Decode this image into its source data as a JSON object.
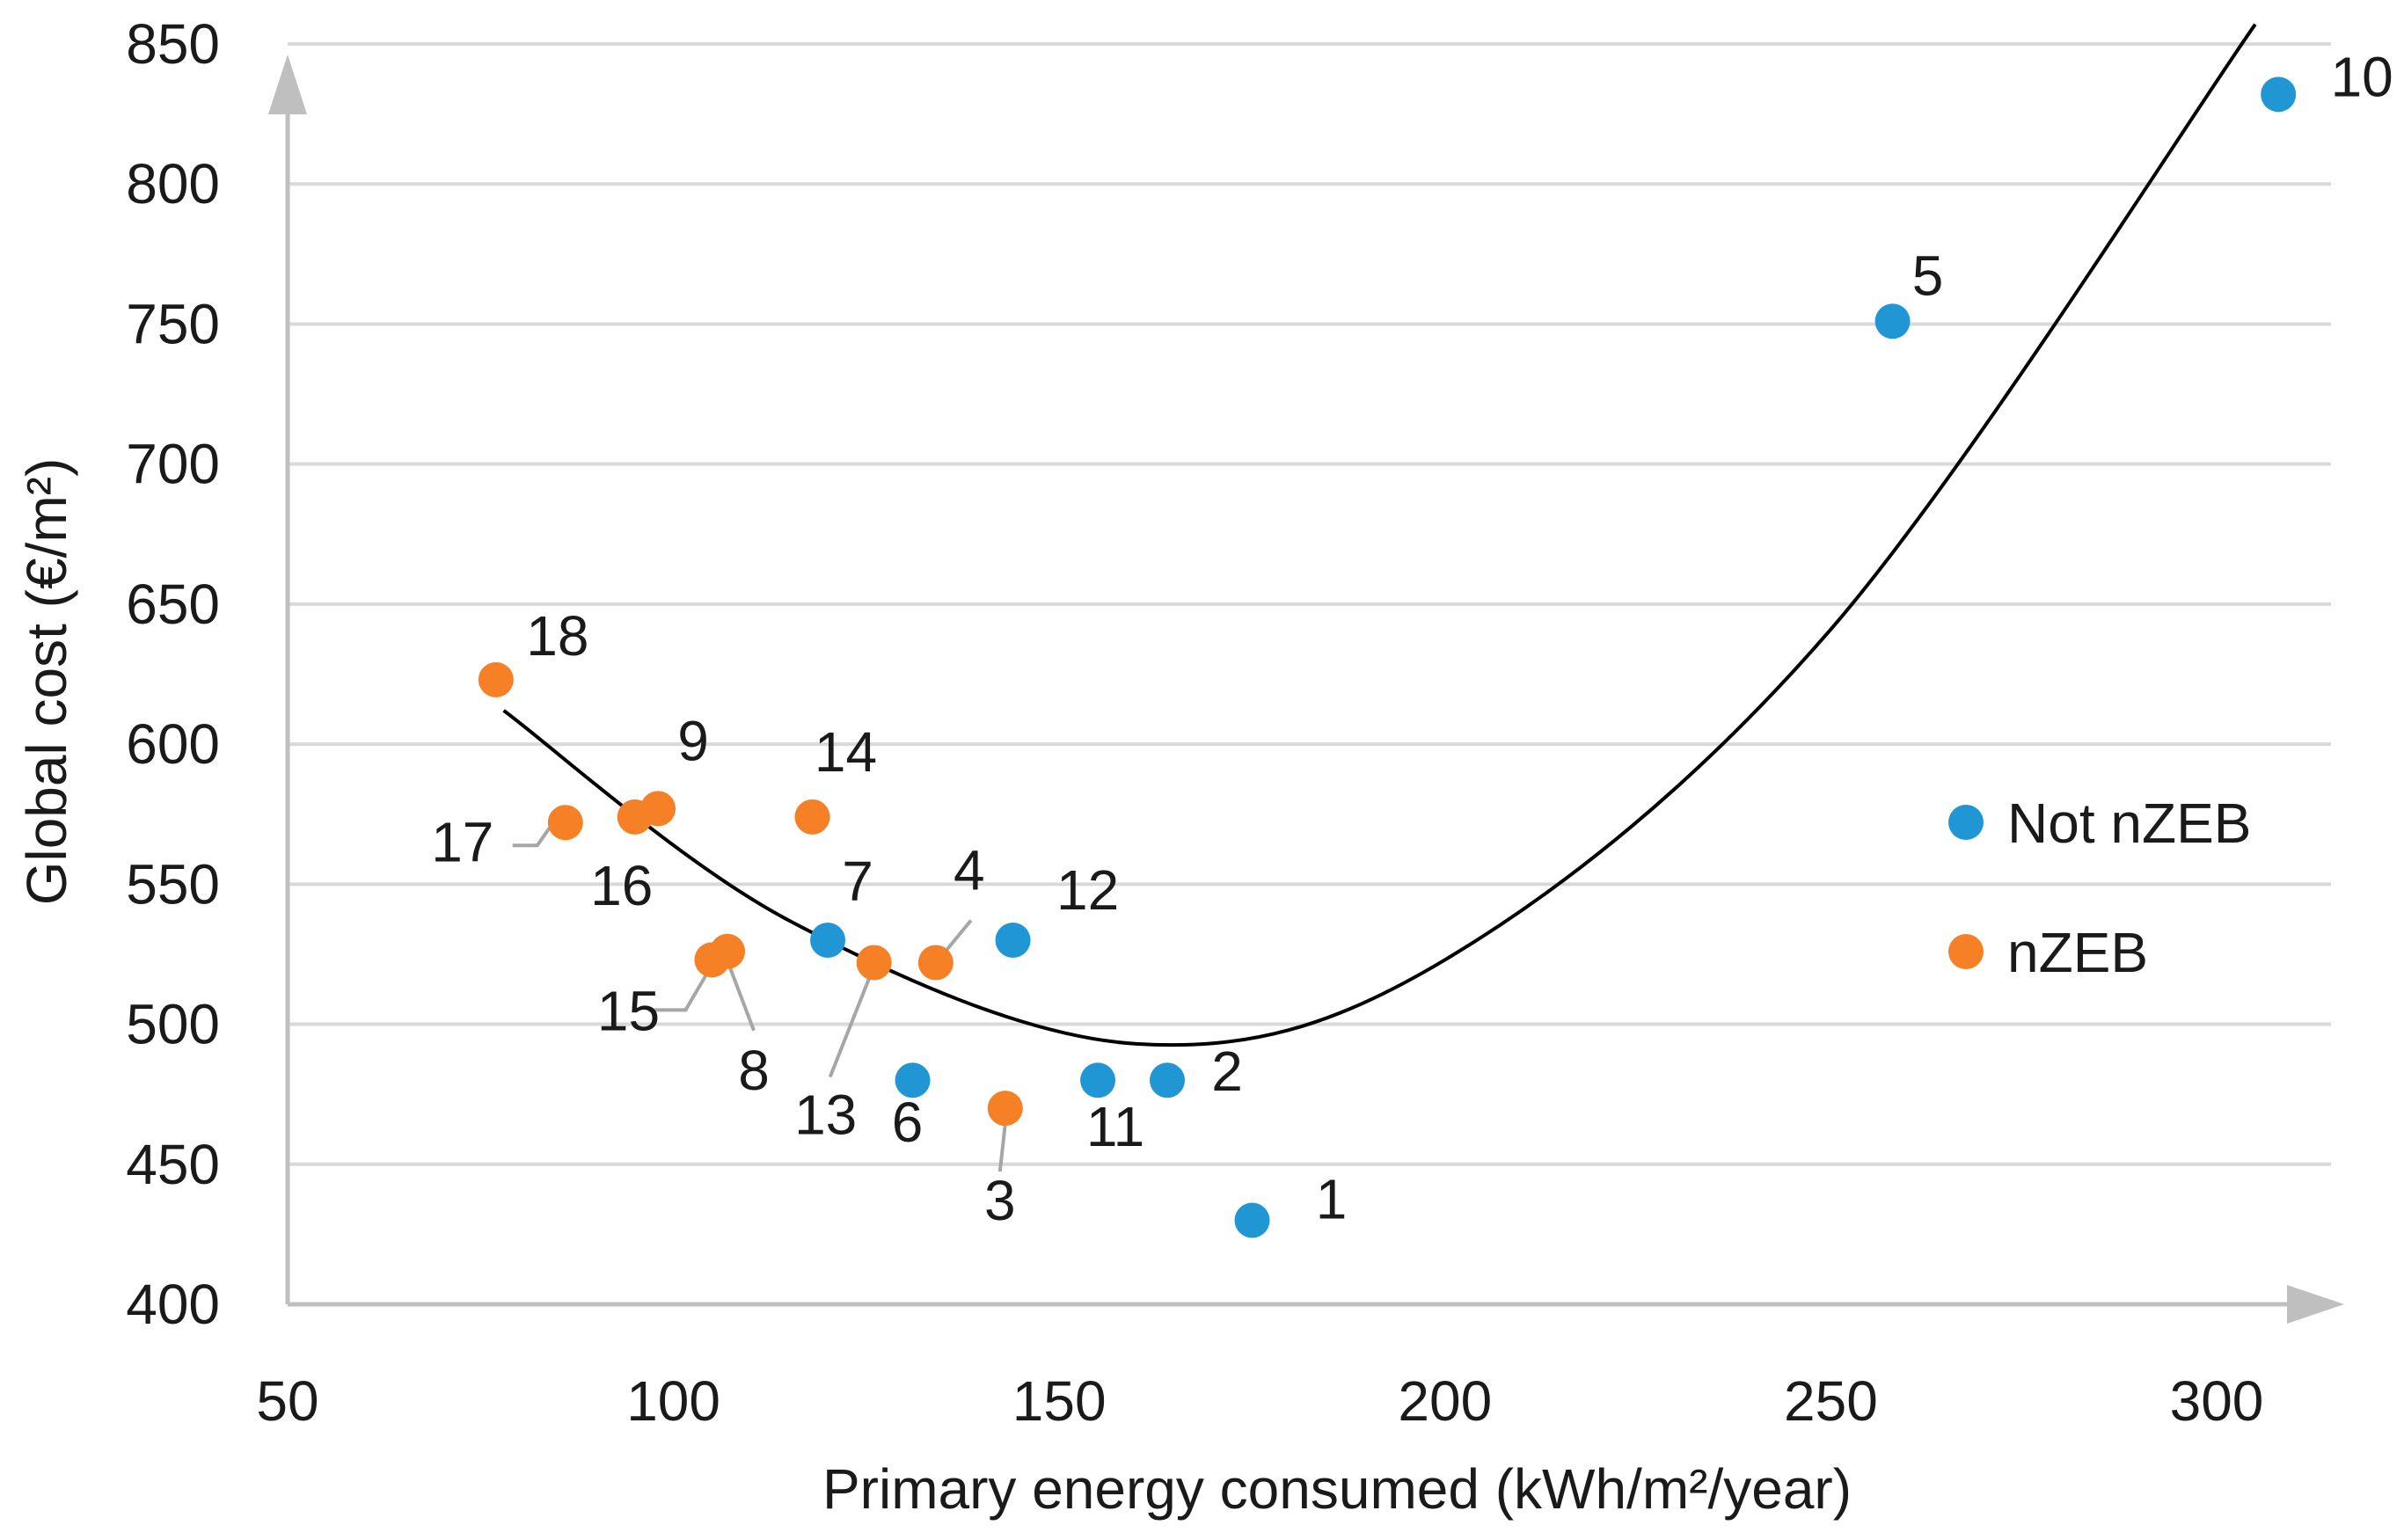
{
  "chart_data": {
    "type": "scatter",
    "title": "",
    "xlabel": "Primary energy consumed (kWh/m²/year)",
    "ylabel": "Global cost (€/m²)",
    "xlim": [
      50,
      320
    ],
    "ylim": [
      400,
      860
    ],
    "xticks": [
      50,
      100,
      150,
      200,
      250,
      300
    ],
    "yticks": [
      400,
      450,
      500,
      550,
      600,
      650,
      700,
      750,
      800,
      850
    ],
    "grid": "horizontal",
    "legend_position": "right",
    "series": [
      {
        "name": "Not nZEB",
        "color": "#2196d4",
        "points": [
          {
            "label": "1",
            "x": 175,
            "y": 430
          },
          {
            "label": "2",
            "x": 164,
            "y": 480
          },
          {
            "label": "5",
            "x": 258,
            "y": 751
          },
          {
            "label": "6",
            "x": 131,
            "y": 480
          },
          {
            "label": "7",
            "x": 120,
            "y": 530
          },
          {
            "label": "10",
            "x": 308,
            "y": 832
          },
          {
            "label": "11",
            "x": 155,
            "y": 480
          },
          {
            "label": "12",
            "x": 144,
            "y": 530
          }
        ]
      },
      {
        "name": "nZEB",
        "color": "#f58025",
        "points": [
          {
            "label": "3",
            "x": 143,
            "y": 470
          },
          {
            "label": "4",
            "x": 134,
            "y": 522
          },
          {
            "label": "8",
            "x": 107,
            "y": 526
          },
          {
            "label": "9",
            "x": 98,
            "y": 577
          },
          {
            "label": "13",
            "x": 126,
            "y": 522
          },
          {
            "label": "14",
            "x": 118,
            "y": 574
          },
          {
            "label": "15",
            "x": 105,
            "y": 523
          },
          {
            "label": "16",
            "x": 95,
            "y": 574
          },
          {
            "label": "17",
            "x": 86,
            "y": 572
          },
          {
            "label": "18",
            "x": 77,
            "y": 623
          }
        ]
      }
    ],
    "trendline": {
      "type": "polynomial",
      "color": "#000000",
      "x_range": [
        78,
        305
      ],
      "points": [
        {
          "x": 78,
          "y": 612
        },
        {
          "x": 115,
          "y": 537
        },
        {
          "x": 160,
          "y": 493
        },
        {
          "x": 200,
          "y": 523
        },
        {
          "x": 250,
          "y": 641
        },
        {
          "x": 305,
          "y": 857
        }
      ]
    }
  }
}
